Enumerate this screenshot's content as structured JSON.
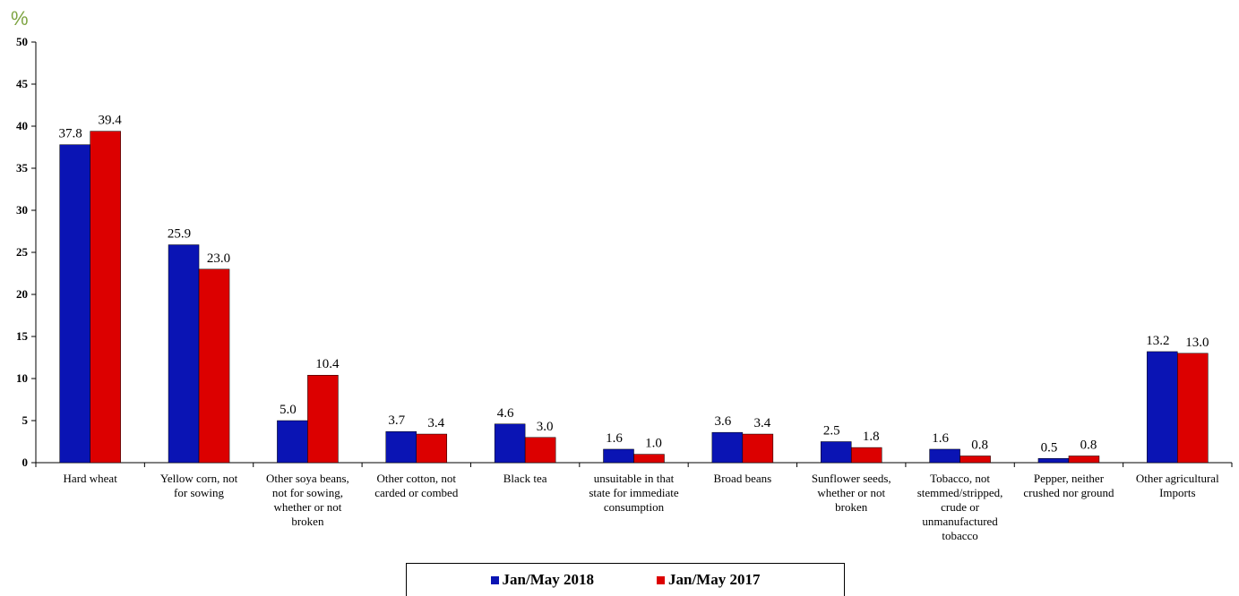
{
  "chart_data": {
    "type": "bar",
    "unit_label": "%",
    "categories": [
      [
        "Hard wheat"
      ],
      [
        "Yellow corn, not",
        "for sowing"
      ],
      [
        "Other soya beans,",
        "not for sowing,",
        "whether or not",
        "broken"
      ],
      [
        "Other cotton, not",
        "carded or combed"
      ],
      [
        "Black tea"
      ],
      [
        "unsuitable in that",
        "state for immediate",
        "consumption"
      ],
      [
        "Broad beans"
      ],
      [
        "Sunflower seeds,",
        "whether or not",
        "broken"
      ],
      [
        "Tobacco, not",
        "stemmed/stripped,",
        "crude or",
        "unmanufactured",
        "tobacco"
      ],
      [
        "Pepper, neither",
        "crushed nor ground"
      ],
      [
        "Other agricultural",
        "Imports"
      ]
    ],
    "series": [
      {
        "name": "Jan/May 2018",
        "color": "#0a14b4",
        "values": [
          37.8,
          25.9,
          5.0,
          3.7,
          4.6,
          1.6,
          3.6,
          2.5,
          1.6,
          0.5,
          13.2
        ],
        "labels": [
          "37.8",
          "25.9",
          "5.0",
          "3.7",
          "4.6",
          "1.6",
          "3.6",
          "2.5",
          "1.6",
          "0.5",
          "13.2"
        ]
      },
      {
        "name": "Jan/May  2017",
        "color": "#dc0000",
        "values": [
          39.4,
          23.0,
          10.4,
          3.4,
          3.0,
          1.0,
          3.4,
          1.8,
          0.8,
          0.8,
          13.0
        ],
        "labels": [
          "39.4",
          "23.0",
          "10.4",
          "3.4",
          "3.0",
          "1.0",
          "3.4",
          "1.8",
          "0.8",
          "0.8",
          "13.0"
        ]
      }
    ],
    "ylim": [
      0,
      50
    ],
    "yticks": [
      "0",
      "5",
      "10",
      "15",
      "20",
      "25",
      "30",
      "35",
      "40",
      "45",
      "50"
    ],
    "grid": false,
    "legend_position": "bottom-center"
  }
}
